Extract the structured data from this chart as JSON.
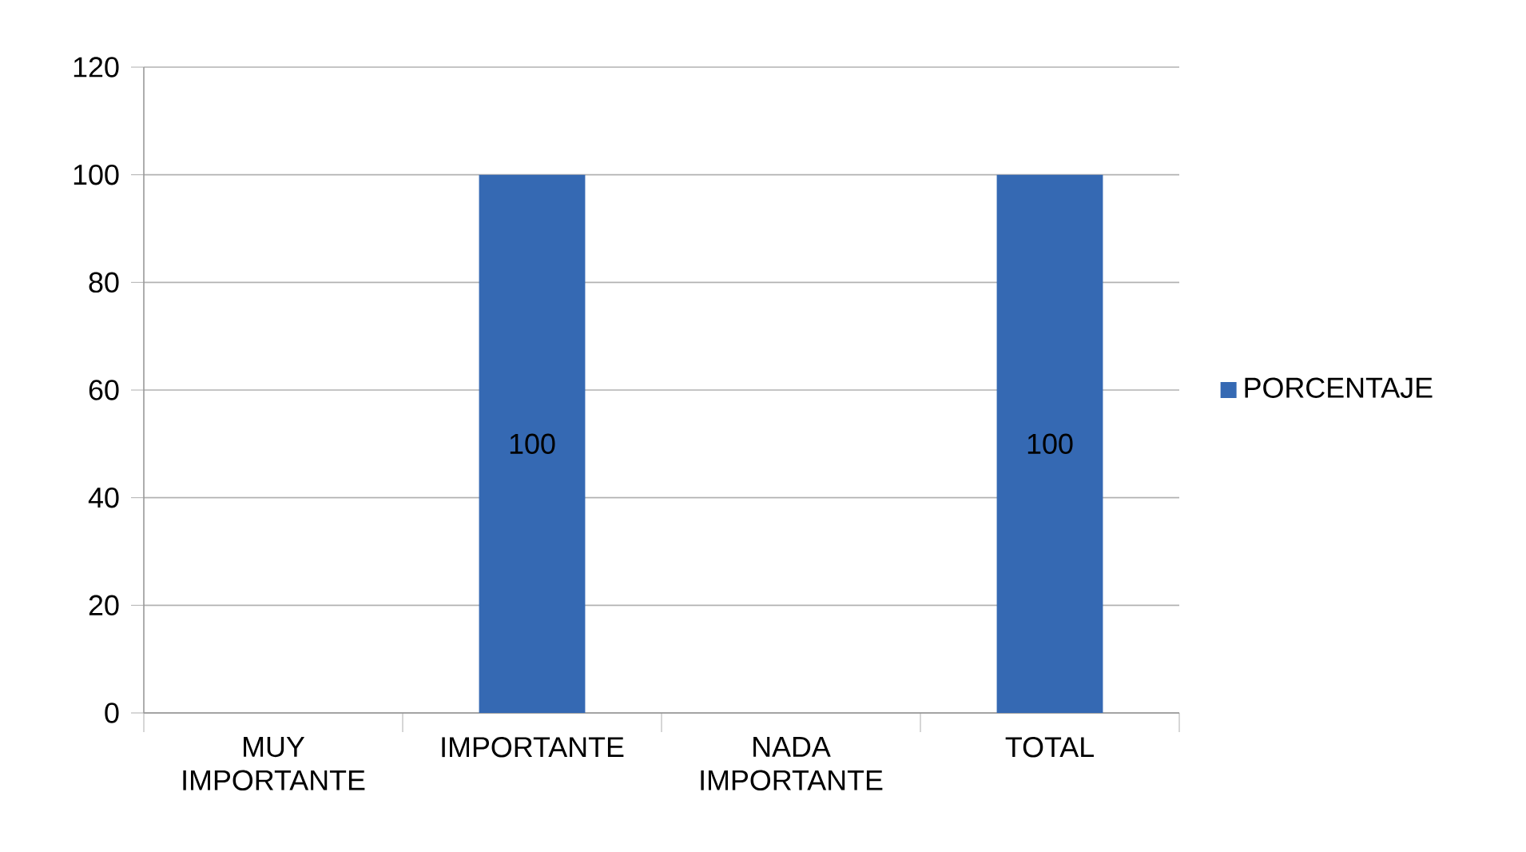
{
  "chart_data": {
    "type": "bar",
    "categories": [
      "MUY IMPORTANTE",
      "IMPORTANTE",
      "NADA IMPORTANTE",
      "TOTAL"
    ],
    "series": [
      {
        "name": "PORCENTAJE",
        "color": "#3569b3",
        "values": [
          0,
          100,
          0,
          100
        ],
        "value_labels": [
          null,
          "100",
          null,
          "100"
        ]
      }
    ],
    "ylim": [
      0,
      120
    ],
    "yticks": [
      0,
      20,
      40,
      60,
      80,
      100,
      120
    ],
    "grid": "y",
    "legend": "right"
  }
}
